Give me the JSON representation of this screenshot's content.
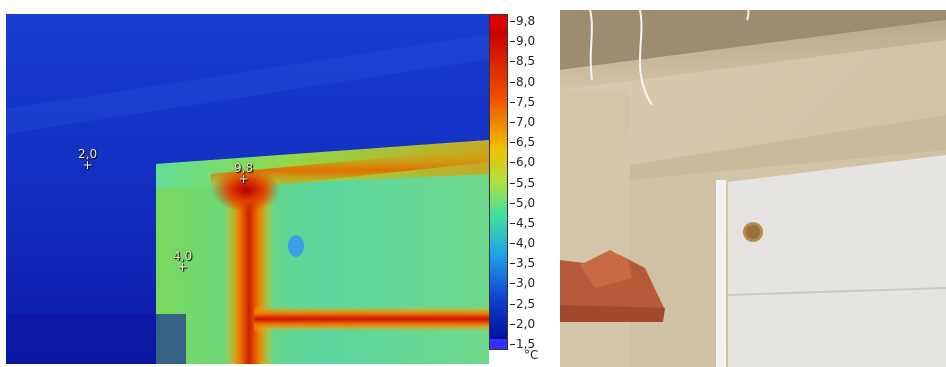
{
  "thermal": {
    "spots": [
      {
        "label": "2,0"
      },
      {
        "label": "9,8"
      },
      {
        "label": "4,0"
      }
    ],
    "scale": {
      "max_label": "9,8",
      "min_label": "1,5",
      "ticks": [
        "9,0",
        "8,5",
        "8,0",
        "7,5",
        "7,0",
        "6,5",
        "6,0",
        "5,5",
        "5,0",
        "4,5",
        "4,0",
        "3,5",
        "3,0",
        "2,5",
        "2,0"
      ],
      "unit": "°C"
    }
  },
  "colors": {
    "cold": "#1020c0",
    "mid": "#3cd2a0",
    "hot": "#c81400",
    "wall_photo": "#d6c7a8",
    "garage_door": "#e6e6e4"
  }
}
